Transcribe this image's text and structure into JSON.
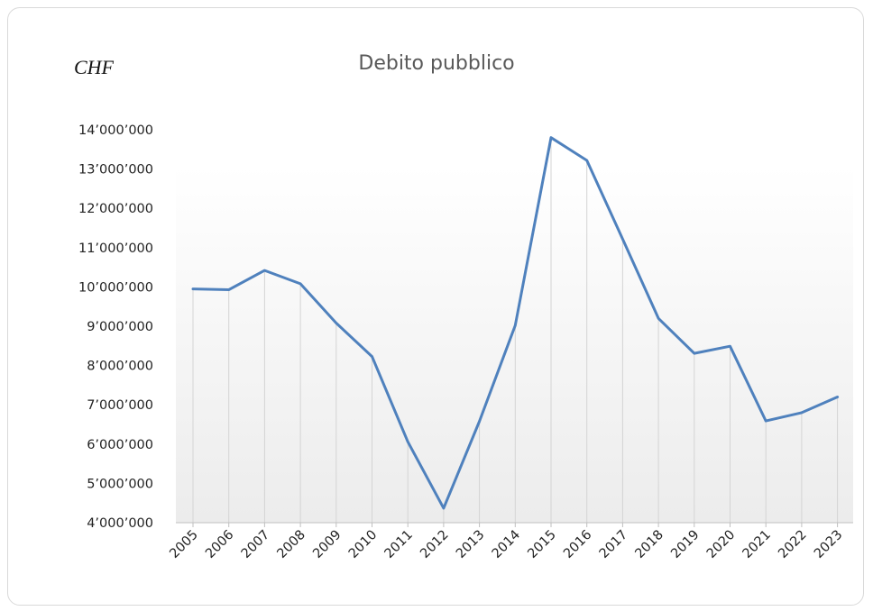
{
  "chart_data": {
    "type": "area",
    "title": "Debito pubblico",
    "unit_label": "CHF",
    "xlabel": "",
    "ylabel": "",
    "categories": [
      "2005",
      "2006",
      "2007",
      "2008",
      "2009",
      "2010",
      "2011",
      "2012",
      "2013",
      "2014",
      "2015",
      "2016",
      "2017",
      "2018",
      "2019",
      "2020",
      "2021",
      "2022",
      "2023"
    ],
    "series": [
      {
        "values": [
          9950000,
          9930000,
          10420000,
          10080000,
          9080000,
          8230000,
          6060000,
          4370000,
          6580000,
          9020000,
          13800000,
          13220000,
          11220000,
          9200000,
          8310000,
          8490000,
          6590000,
          6800000,
          7200000
        ]
      }
    ],
    "ylim": [
      4000000,
      14000000
    ],
    "yticks": [
      4000000,
      5000000,
      6000000,
      7000000,
      8000000,
      9000000,
      10000000,
      11000000,
      12000000,
      13000000,
      14000000
    ],
    "ytick_labels": [
      "4’000’000",
      "5’000’000",
      "6’000’000",
      "7’000’000",
      "8’000’000",
      "9’000’000",
      "10’000’000",
      "11’000’000",
      "12’000’000",
      "13’000’000",
      "14’000’000"
    ],
    "drop_lines": true,
    "grid": false,
    "legend": "none",
    "colors": {
      "line": "#4f81bd",
      "drop_line": "#d4d4d4",
      "plot_bg_top": "#ffffff",
      "plot_bg_bottom": "#ececec"
    }
  }
}
